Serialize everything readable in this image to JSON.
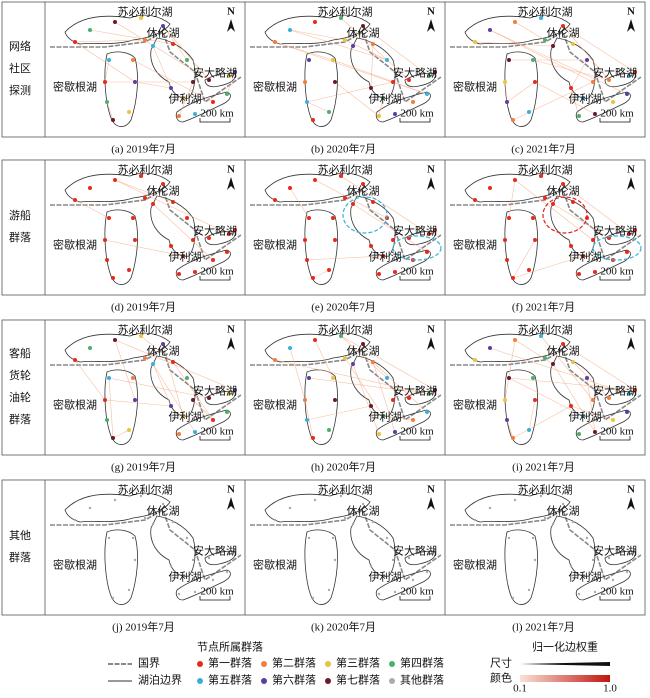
{
  "rows": [
    {
      "label": [
        "网络",
        "社区",
        "探测"
      ],
      "panels": [
        "(a) 2019年7月",
        "(b) 2020年7月",
        "(c) 2021年7月"
      ]
    },
    {
      "label": [
        "游船",
        "群落"
      ],
      "panels": [
        "(d) 2019年7月",
        "(e) 2020年7月",
        "(f) 2021年7月"
      ]
    },
    {
      "label": [
        "客船",
        "货轮",
        "油轮",
        "群落"
      ],
      "panels": [
        "(g) 2019年7月",
        "(h) 2020年7月",
        "(i) 2021年7月"
      ]
    },
    {
      "label": [
        "其他",
        "群落"
      ],
      "panels": [
        "(j) 2019年7月",
        "(k) 2020年7月",
        "(l) 2021年7月"
      ]
    }
  ],
  "map_labels": {
    "superior": "苏必利尔湖",
    "huron": "休伦湖",
    "ontario": "安大略湖",
    "michigan": "密歇根湖",
    "erie": "伊利湖",
    "north": "N",
    "scale": "200 km"
  },
  "legend": {
    "title": "节点所属群落",
    "communities": [
      {
        "name": "第一群落",
        "color": "#e8291c"
      },
      {
        "name": "第二群落",
        "color": "#f47c3c"
      },
      {
        "name": "第三群落",
        "color": "#e8c53a"
      },
      {
        "name": "第四群落",
        "color": "#4caf6a"
      },
      {
        "name": "第五群落",
        "color": "#3ab0d8"
      },
      {
        "name": "第六群落",
        "color": "#5b3fa0"
      },
      {
        "name": "第七群落",
        "color": "#6b1a2a"
      },
      {
        "name": "其他群落",
        "color": "#aaaaaa"
      }
    ],
    "border": "国界",
    "lake_boundary": "湖泊边界",
    "weight_title": "归一化边权重",
    "size": "尺寸",
    "color": "颜色",
    "min": "0.1",
    "max": "1.0"
  }
}
